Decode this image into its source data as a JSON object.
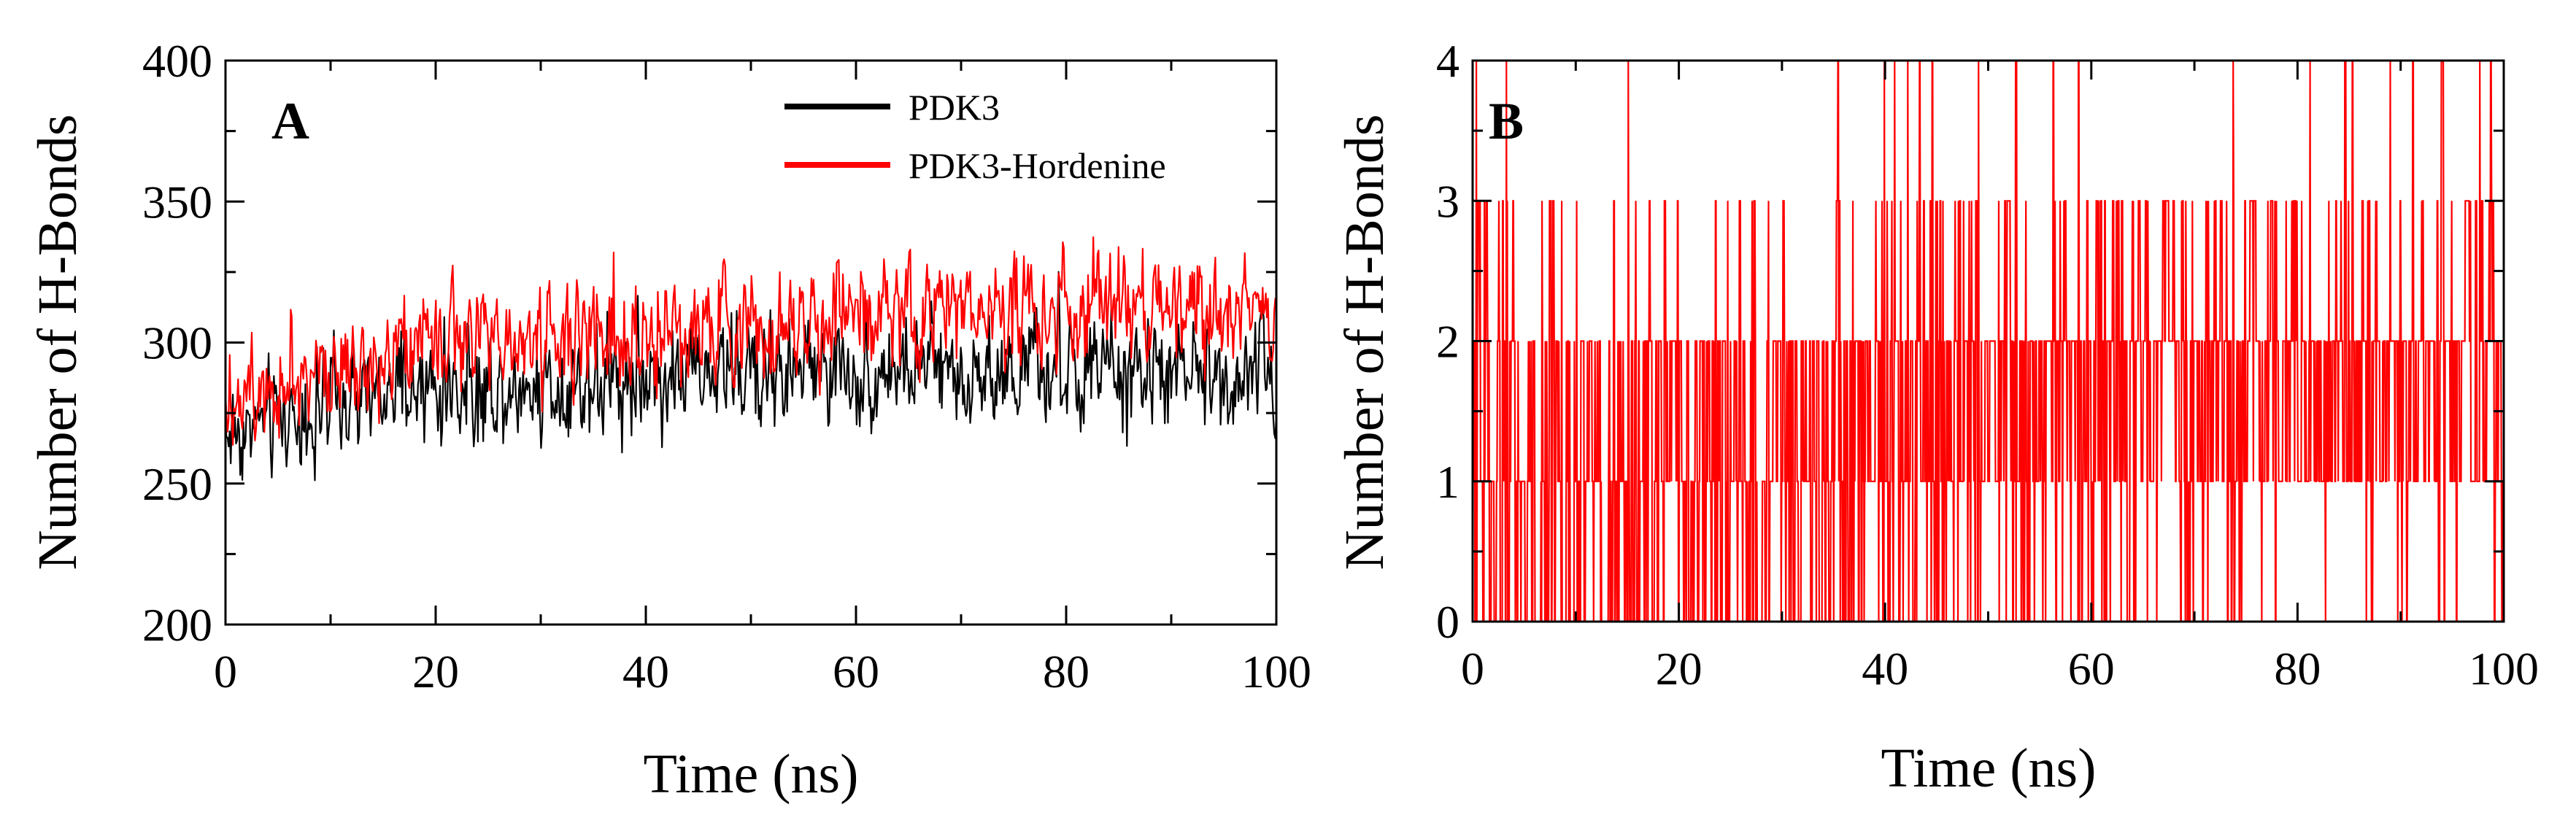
{
  "chart_data": [
    {
      "id": "A",
      "type": "line",
      "panel_label": "A",
      "title": "",
      "xlabel": "Time (ns)",
      "ylabel": "Number of H-Bonds",
      "xlim": [
        0,
        100
      ],
      "ylim": [
        200,
        400
      ],
      "xticks": [
        0,
        20,
        40,
        60,
        80,
        100
      ],
      "xtick_labels": [
        "0",
        "20",
        "40",
        "60",
        "80",
        "100"
      ],
      "xminor_step": 10,
      "yticks": [
        200,
        250,
        300,
        350,
        400
      ],
      "ytick_labels": [
        "200",
        "250",
        "300",
        "350",
        "400"
      ],
      "yminor_step": 25,
      "grid": false,
      "legend_position": "top-right",
      "series": [
        {
          "name": "PDK3",
          "color": "#000000",
          "trend": {
            "x": [
              0,
              5,
              10,
              20,
              30,
              40,
              50,
              60,
              70,
              80,
              90,
              95,
              100
            ],
            "y": [
              268,
              273,
              277,
              283,
              285,
              288,
              290,
              290,
              290,
              289,
              288,
              289,
              288
            ]
          },
          "noise": 9,
          "points": 1000
        },
        {
          "name": "PDK3-Hordenine",
          "color": "#ff0000",
          "trend": {
            "x": [
              0,
              5,
              10,
              20,
              30,
              40,
              50,
              60,
              70,
              80,
              90,
              95,
              100
            ],
            "y": [
              282,
              287,
              293,
              298,
              302,
              303,
              305,
              309,
              312,
              312,
              313,
              310,
              308
            ]
          },
          "noise": 9,
          "points": 1000
        }
      ]
    },
    {
      "id": "B",
      "type": "line",
      "panel_label": "B",
      "title": "",
      "xlabel": "Time (ns)",
      "ylabel": "Number of H-Bonds",
      "xlim": [
        0,
        100
      ],
      "ylim": [
        0,
        4
      ],
      "xticks": [
        0,
        20,
        40,
        60,
        80,
        100
      ],
      "xtick_labels": [
        "0",
        "20",
        "40",
        "60",
        "80",
        "100"
      ],
      "xminor_step": 10,
      "yticks": [
        0,
        1,
        2,
        3,
        4
      ],
      "ytick_labels": [
        "0",
        "1",
        "2",
        "3",
        "4"
      ],
      "yminor_step": 0.5,
      "grid": false,
      "series": [
        {
          "name": "PDK3-Hordenine",
          "color": "#ff0000",
          "description": "integer-valued hydrogen bond count, fluctuating mostly between 0 and 2, occasionally 3 and 4",
          "segments": [
            {
              "from": 0,
              "to": 10,
              "probabilities": [
                0.38,
                0.32,
                0.22,
                0.06,
                0.02
              ]
            },
            {
              "from": 10,
              "to": 40,
              "probabilities": [
                0.3,
                0.35,
                0.28,
                0.06,
                0.01
              ]
            },
            {
              "from": 40,
              "to": 55,
              "probabilities": [
                0.18,
                0.32,
                0.35,
                0.13,
                0.02
              ]
            },
            {
              "from": 55,
              "to": 75,
              "probabilities": [
                0.1,
                0.27,
                0.45,
                0.16,
                0.02
              ]
            },
            {
              "from": 75,
              "to": 100,
              "probabilities": [
                0.07,
                0.3,
                0.5,
                0.11,
                0.02
              ]
            }
          ],
          "points": 2200
        }
      ]
    }
  ]
}
